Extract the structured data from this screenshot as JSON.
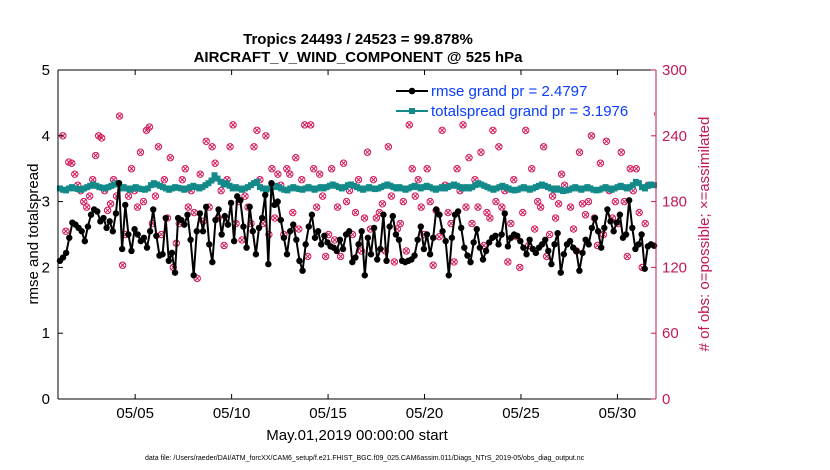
{
  "chart_data": {
    "type": "line",
    "title": "Tropics 24493 / 24523 = 99.878%",
    "subtitle": "AIRCRAFT_V_WIND_COMPONENT @ 525 hPa",
    "xlabel": "May.01,2019 00:00:00 start",
    "ylabel_left": "rmse and totalspread",
    "ylabel_right": "# of obs: o=possible; ×=assimilated",
    "footnote": "data file: /Users/raeder/DAI/ATM_forcXX/CAM6_setup/f.e21.FHIST_BGC.f09_025.CAM6assim.011/Diags_NTrS_2019-05/obs_diag_output.nc",
    "x_ticks": [
      "05/05",
      "05/10",
      "05/15",
      "05/20",
      "05/25",
      "05/30"
    ],
    "x_tick_days": [
      5,
      10,
      15,
      20,
      25,
      30
    ],
    "x_range_days": [
      1,
      32
    ],
    "ylim_left": [
      0,
      5
    ],
    "yticks_left": [
      0,
      1,
      2,
      3,
      4,
      5
    ],
    "ylim_right": [
      0,
      300
    ],
    "yticks_right": [
      0,
      60,
      120,
      180,
      240,
      300
    ],
    "colors": {
      "rmse": "#000000",
      "spread": "#138a8a",
      "obs": "#d4145a",
      "right_axis": "#c2185b",
      "legend_text": "#0a3dff"
    },
    "series": [
      {
        "name": "rmse grand pr = 2.4797",
        "axis": "left",
        "values": [
          2.1,
          2.15,
          2.22,
          2.45,
          2.68,
          2.65,
          2.6,
          2.55,
          2.4,
          2.62,
          2.8,
          2.88,
          2.85,
          2.7,
          2.75,
          2.6,
          2.7,
          2.55,
          2.82,
          3.28,
          2.28,
          2.95,
          2.5,
          2.25,
          2.58,
          2.5,
          2.4,
          2.45,
          2.3,
          2.55,
          2.88,
          2.48,
          2.18,
          2.2,
          2.75,
          2.1,
          2.22,
          1.92,
          2.75,
          2.72,
          2.65,
          2.8,
          2.42,
          1.88,
          2.55,
          2.82,
          2.55,
          2.92,
          2.35,
          2.08,
          2.72,
          2.88,
          2.5,
          2.78,
          2.65,
          2.98,
          2.4,
          3.08,
          3.02,
          2.62,
          2.3,
          2.92,
          2.55,
          2.2,
          2.6,
          2.75,
          3.1,
          2.05,
          3.28,
          2.95,
          3.0,
          2.72,
          2.45,
          2.2,
          2.55,
          2.65,
          2.42,
          2.1,
          1.95,
          2.35,
          2.62,
          2.8,
          2.45,
          2.55,
          2.35,
          2.48,
          2.38,
          2.32,
          2.3,
          2.25,
          2.42,
          2.28,
          2.5,
          2.55,
          2.08,
          2.15,
          2.35,
          2.55,
          1.88,
          2.45,
          2.2,
          2.6,
          2.12,
          2.28,
          2.8,
          2.1,
          2.62,
          2.78,
          2.5,
          2.42,
          2.1,
          2.08,
          2.1,
          2.12,
          2.18,
          2.42,
          2.62,
          2.28,
          2.5,
          2.2,
          2.45,
          2.88,
          2.8,
          2.55,
          2.4,
          1.88,
          2.45,
          2.8,
          2.85,
          2.6,
          2.3,
          2.18,
          2.08,
          2.38,
          2.58,
          2.3,
          2.12,
          2.25,
          2.38,
          2.45,
          2.48,
          2.35,
          2.5,
          2.82,
          2.32,
          2.45,
          2.5,
          2.48,
          2.4,
          2.3,
          2.2,
          2.42,
          2.28,
          2.22,
          2.3,
          2.35,
          2.42,
          2.25,
          2.05,
          2.35,
          2.52,
          1.92,
          2.2,
          2.35,
          2.4,
          2.3,
          2.25,
          1.95,
          2.22,
          2.42,
          2.35,
          2.6,
          2.75,
          2.55,
          2.3,
          2.6,
          2.88,
          2.7,
          2.55,
          2.68,
          2.8,
          2.45,
          2.5,
          3.02,
          2.6,
          2.28,
          2.35,
          2.5,
          1.98,
          2.32,
          2.35,
          2.33
        ]
      },
      {
        "name": "totalspread grand pr = 3.1976",
        "axis": "left",
        "values": [
          3.2,
          3.18,
          3.17,
          3.2,
          3.22,
          3.2,
          3.19,
          3.18,
          3.2,
          3.22,
          3.24,
          3.26,
          3.24,
          3.22,
          3.21,
          3.2,
          3.22,
          3.24,
          3.26,
          3.28,
          3.2,
          3.22,
          3.2,
          3.18,
          3.2,
          3.22,
          3.2,
          3.19,
          3.18,
          3.2,
          3.25,
          3.28,
          3.26,
          3.24,
          3.22,
          3.2,
          3.18,
          3.2,
          3.22,
          3.21,
          3.2,
          3.18,
          3.2,
          3.22,
          3.24,
          3.22,
          3.2,
          3.22,
          3.25,
          3.28,
          3.32,
          3.4,
          3.35,
          3.3,
          3.26,
          3.28,
          3.24,
          3.2,
          3.22,
          3.2,
          3.18,
          3.2,
          3.22,
          3.25,
          3.28,
          3.3,
          3.22,
          3.2,
          3.18,
          3.2,
          3.22,
          3.24,
          3.22,
          3.2,
          3.18,
          3.17,
          3.2,
          3.22,
          3.2,
          3.19,
          3.18,
          3.2,
          3.22,
          3.2,
          3.18,
          3.2,
          3.22,
          3.2,
          3.22,
          3.24,
          3.26,
          3.24,
          3.22,
          3.2,
          3.22,
          3.25,
          3.26,
          3.24,
          3.22,
          3.2,
          3.18,
          3.2,
          3.22,
          3.2,
          3.19,
          3.2,
          3.22,
          3.24,
          3.26,
          3.24,
          3.22,
          3.2,
          3.22,
          3.2,
          3.18,
          3.2,
          3.22,
          3.24,
          3.22,
          3.2,
          3.22,
          3.24,
          3.22,
          3.2,
          3.18,
          3.2,
          3.22,
          3.2,
          3.22,
          3.24,
          3.26,
          3.24,
          3.22,
          3.2,
          3.22,
          3.2,
          3.22,
          3.25,
          3.28,
          3.26,
          3.24,
          3.22,
          3.2,
          3.18,
          3.2,
          3.22,
          3.24,
          3.22,
          3.2,
          3.18,
          3.17,
          3.18,
          3.2,
          3.22,
          3.2,
          3.18,
          3.2,
          3.22,
          3.24,
          3.26,
          3.24,
          3.22,
          3.2,
          3.18,
          3.2,
          3.18,
          3.16,
          3.17,
          3.18,
          3.2,
          3.22,
          3.2,
          3.18,
          3.2,
          3.22,
          3.2,
          3.18,
          3.17,
          3.18,
          3.2,
          3.22,
          3.2,
          3.18,
          3.2,
          3.22,
          3.24,
          3.22,
          3.2,
          3.22,
          3.25,
          3.3,
          3.28,
          3.22,
          3.2,
          3.24,
          3.26,
          3.25
        ]
      }
    ],
    "obs_series": {
      "name": "# of obs",
      "axis": "right",
      "values": [
        240,
        153,
        216,
        215,
        205,
        195,
        190,
        180,
        175,
        185,
        200,
        222,
        240,
        238,
        190,
        172,
        178,
        200,
        185,
        258,
        122,
        150,
        185,
        210,
        190,
        175,
        225,
        180,
        245,
        248,
        160,
        185,
        230,
        150,
        200,
        165,
        220,
        120,
        142,
        160,
        200,
        210,
        175,
        190,
        170,
        110,
        205,
        162,
        235,
        175,
        230,
        215,
        165,
        190,
        140,
        200,
        230,
        250,
        160,
        180,
        145,
        185,
        175,
        160,
        230,
        245,
        200,
        160,
        240,
        150,
        210,
        165,
        205,
        195,
        150,
        210,
        205,
        170,
        220,
        155,
        200,
        250,
        130,
        250,
        210,
        175,
        205,
        185,
        130,
        150,
        210,
        145,
        175,
        130,
        215,
        180,
        190,
        150,
        170,
        200,
        135,
        165,
        225,
        155,
        200,
        165,
        170,
        178,
        135,
        230,
        185,
        125,
        155,
        160,
        180,
        135,
        250,
        210,
        185,
        200,
        175,
        150,
        210,
        180,
        122,
        172,
        148,
        245,
        195,
        170,
        160,
        125,
        210,
        190,
        250,
        175,
        220,
        160,
        200,
        175,
        225,
        140,
        170,
        165,
        245,
        180,
        230,
        175,
        190,
        125,
        160,
        200,
        148,
        120,
        170,
        245,
        140,
        210,
        155,
        180,
        175,
        230,
        130,
        150,
        185,
        165,
        178,
        205,
        195,
        260,
        175,
        155,
        135,
        225,
        178,
        168,
        180,
        240,
        165,
        140,
        215,
        150,
        235,
        190,
        165,
        180,
        160,
        225,
        180,
        130,
        210,
        190,
        210,
        170,
        120,
        160,
        195,
        260
      ]
    }
  }
}
